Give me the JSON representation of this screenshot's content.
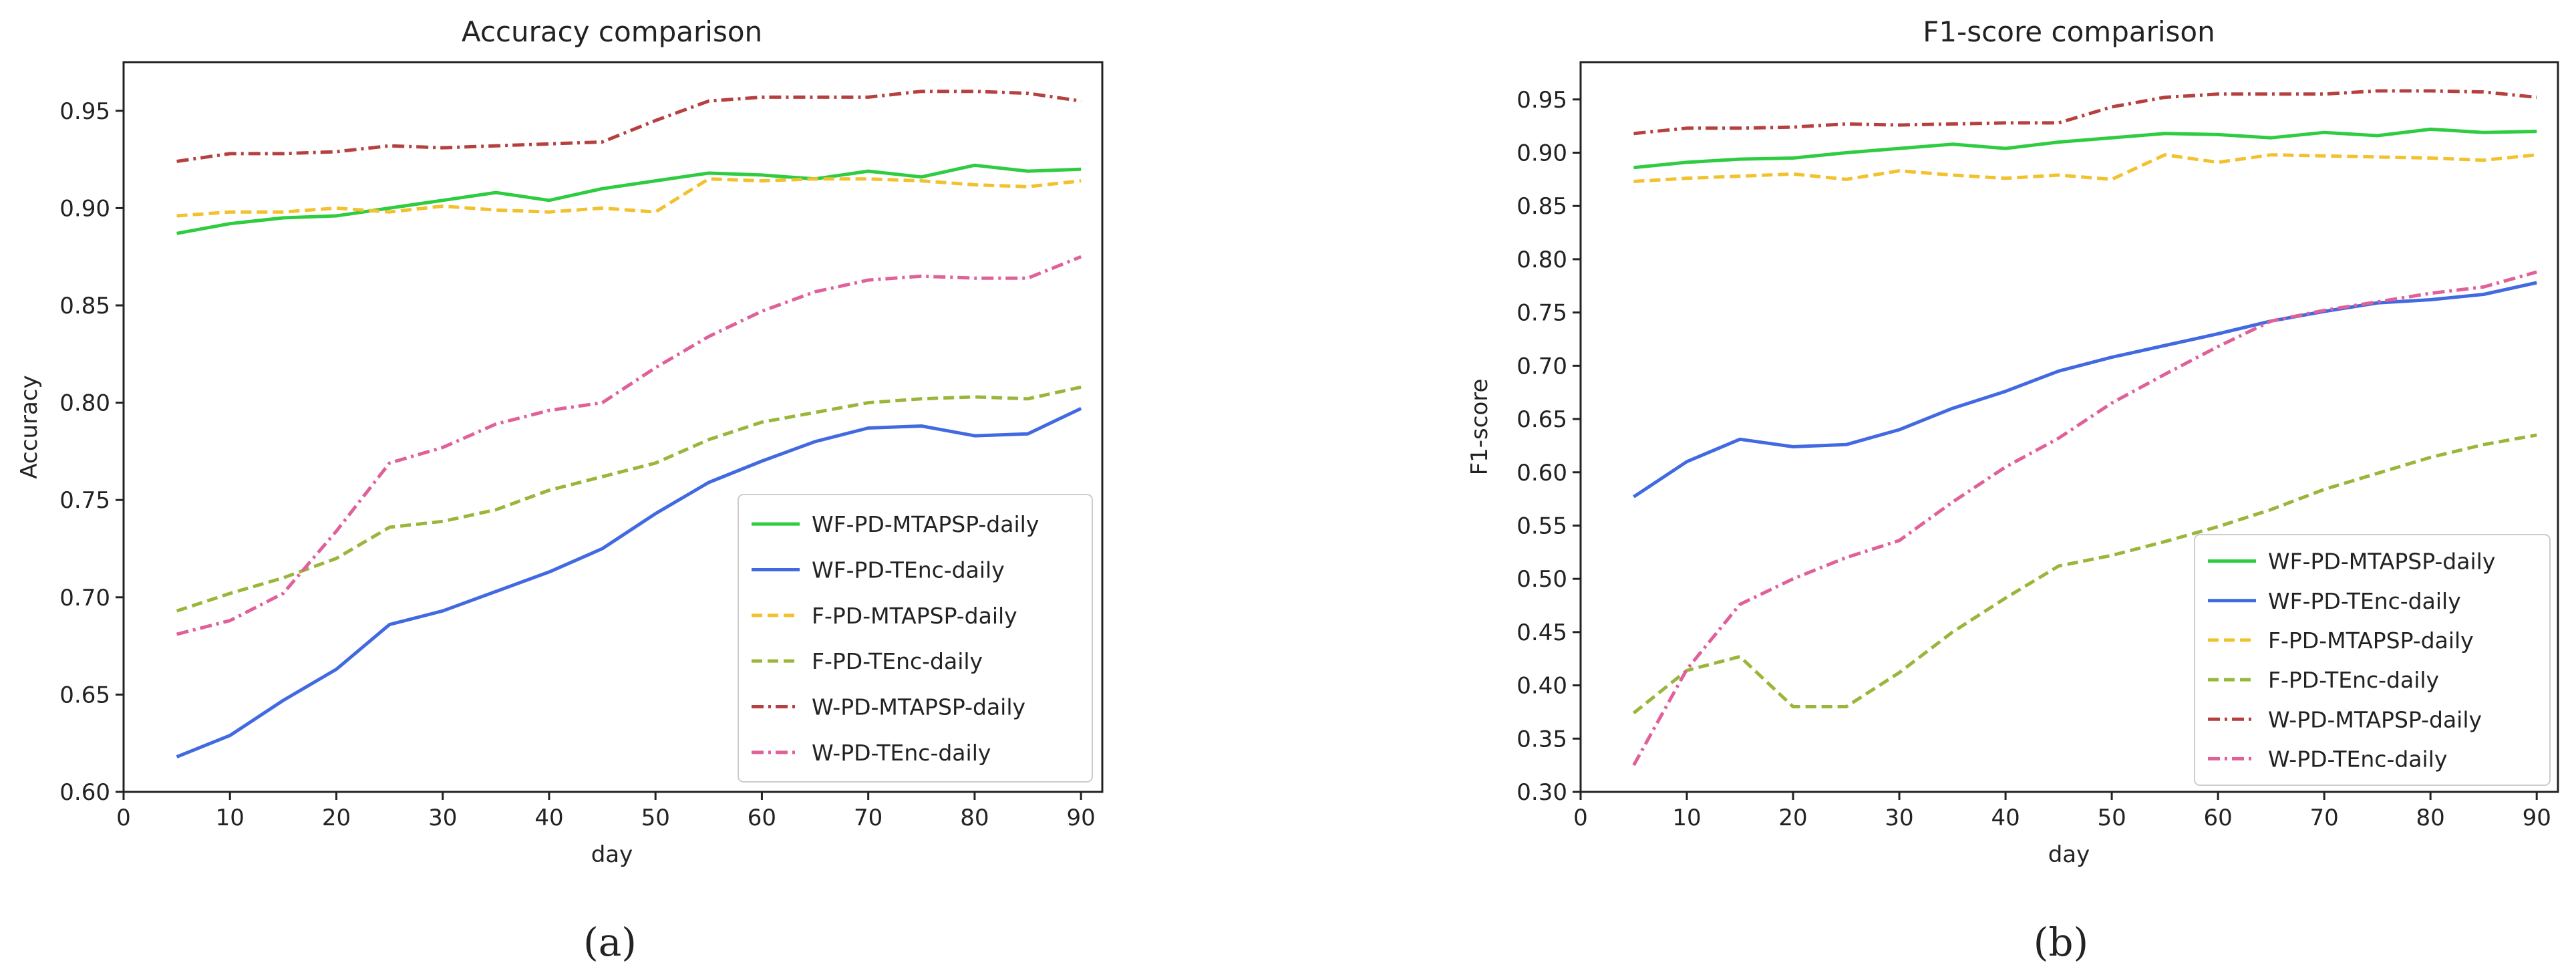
{
  "chart_data": [
    {
      "type": "line",
      "title": "Accuracy comparison",
      "xlabel": "day",
      "ylabel": "Accuracy",
      "caption": "(a)",
      "xlim": [
        0,
        92
      ],
      "ylim": [
        0.6,
        0.975
      ],
      "xticks": [
        0,
        10,
        20,
        30,
        40,
        50,
        60,
        70,
        80,
        90
      ],
      "yticks": [
        0.6,
        0.65,
        0.7,
        0.75,
        0.8,
        0.85,
        0.9,
        0.95
      ],
      "ytick_labels": [
        "0.60",
        "0.65",
        "0.70",
        "0.75",
        "0.80",
        "0.85",
        "0.90",
        "0.95"
      ],
      "legend_position": "lower-right",
      "x": [
        5,
        10,
        15,
        20,
        25,
        30,
        35,
        40,
        45,
        50,
        55,
        60,
        65,
        70,
        75,
        80,
        85,
        90
      ],
      "series": [
        {
          "name": "WF-PD-MTAPSP-daily",
          "color": "#2ecc40",
          "dash": "solid",
          "values": [
            0.887,
            0.892,
            0.895,
            0.896,
            0.9,
            0.904,
            0.908,
            0.904,
            0.91,
            0.914,
            0.918,
            0.917,
            0.915,
            0.919,
            0.916,
            0.922,
            0.919,
            0.92
          ]
        },
        {
          "name": "WF-PD-TEnc-daily",
          "color": "#4169e1",
          "dash": "solid",
          "values": [
            0.618,
            0.629,
            0.647,
            0.663,
            0.686,
            0.693,
            0.703,
            0.713,
            0.725,
            0.743,
            0.759,
            0.77,
            0.78,
            0.787,
            0.788,
            0.783,
            0.784,
            0.797
          ]
        },
        {
          "name": "F-PD-MTAPSP-daily",
          "color": "#f2c12e",
          "dash": "dashed",
          "values": [
            0.896,
            0.898,
            0.898,
            0.9,
            0.898,
            0.901,
            0.899,
            0.898,
            0.9,
            0.898,
            0.915,
            0.914,
            0.915,
            0.915,
            0.914,
            0.912,
            0.911,
            0.914
          ]
        },
        {
          "name": "F-PD-TEnc-daily",
          "color": "#9ab63a",
          "dash": "dashed",
          "values": [
            0.693,
            0.702,
            0.71,
            0.72,
            0.736,
            0.739,
            0.745,
            0.755,
            0.762,
            0.769,
            0.781,
            0.79,
            0.795,
            0.8,
            0.802,
            0.803,
            0.802,
            0.808
          ]
        },
        {
          "name": "W-PD-MTAPSP-daily",
          "color": "#b5403f",
          "dash": "dashdot",
          "values": [
            0.924,
            0.928,
            0.928,
            0.929,
            0.932,
            0.931,
            0.932,
            0.933,
            0.934,
            0.945,
            0.955,
            0.957,
            0.957,
            0.957,
            0.96,
            0.96,
            0.959,
            0.955
          ]
        },
        {
          "name": "W-PD-TEnc-daily",
          "color": "#e0609a",
          "dash": "dashdot",
          "values": [
            0.681,
            0.688,
            0.702,
            0.734,
            0.769,
            0.777,
            0.789,
            0.796,
            0.8,
            0.818,
            0.834,
            0.847,
            0.857,
            0.863,
            0.865,
            0.864,
            0.864,
            0.875
          ]
        }
      ]
    },
    {
      "type": "line",
      "title": "F1-score comparison",
      "xlabel": "day",
      "ylabel": "F1-score",
      "caption": "(b)",
      "xlim": [
        0,
        92
      ],
      "ylim": [
        0.3,
        0.985
      ],
      "xticks": [
        0,
        10,
        20,
        30,
        40,
        50,
        60,
        70,
        80,
        90
      ],
      "yticks": [
        0.3,
        0.35,
        0.4,
        0.45,
        0.5,
        0.55,
        0.6,
        0.65,
        0.7,
        0.75,
        0.8,
        0.85,
        0.9,
        0.95
      ],
      "ytick_labels": [
        "0.30",
        "0.35",
        "0.40",
        "0.45",
        "0.50",
        "0.55",
        "0.60",
        "0.65",
        "0.70",
        "0.75",
        "0.80",
        "0.85",
        "0.90",
        "0.95"
      ],
      "legend_position": "lower-right",
      "x": [
        5,
        10,
        15,
        20,
        25,
        30,
        35,
        40,
        45,
        50,
        55,
        60,
        65,
        70,
        75,
        80,
        85,
        90
      ],
      "series": [
        {
          "name": "WF-PD-MTAPSP-daily",
          "color": "#2ecc40",
          "dash": "solid",
          "values": [
            0.886,
            0.891,
            0.894,
            0.895,
            0.9,
            0.904,
            0.908,
            0.904,
            0.91,
            0.914,
            0.918,
            0.917,
            0.914,
            0.919,
            0.916,
            0.922,
            0.919,
            0.92
          ]
        },
        {
          "name": "WF-PD-TEnc-daily",
          "color": "#4169e1",
          "dash": "solid",
          "values": [
            0.577,
            0.61,
            0.631,
            0.624,
            0.626,
            0.64,
            0.66,
            0.676,
            0.695,
            0.708,
            0.719,
            0.73,
            0.742,
            0.751,
            0.759,
            0.762,
            0.767,
            0.778
          ]
        },
        {
          "name": "F-PD-MTAPSP-daily",
          "color": "#f2c12e",
          "dash": "dashed",
          "values": [
            0.873,
            0.876,
            0.878,
            0.88,
            0.875,
            0.883,
            0.879,
            0.876,
            0.879,
            0.875,
            0.898,
            0.891,
            0.898,
            0.897,
            0.896,
            0.895,
            0.893,
            0.898
          ]
        },
        {
          "name": "F-PD-TEnc-daily",
          "color": "#9ab63a",
          "dash": "dashed",
          "values": [
            0.374,
            0.414,
            0.427,
            0.38,
            0.38,
            0.412,
            0.45,
            0.482,
            0.512,
            0.522,
            0.535,
            0.549,
            0.565,
            0.584,
            0.599,
            0.614,
            0.626,
            0.635
          ]
        },
        {
          "name": "W-PD-MTAPSP-daily",
          "color": "#b5403f",
          "dash": "dashdot",
          "values": [
            0.918,
            0.923,
            0.923,
            0.924,
            0.927,
            0.926,
            0.927,
            0.928,
            0.928,
            0.943,
            0.952,
            0.955,
            0.955,
            0.955,
            0.958,
            0.958,
            0.957,
            0.952
          ]
        },
        {
          "name": "W-PD-TEnc-daily",
          "color": "#e0609a",
          "dash": "dashdot",
          "values": [
            0.325,
            0.415,
            0.476,
            0.5,
            0.52,
            0.536,
            0.572,
            0.605,
            0.632,
            0.665,
            0.692,
            0.718,
            0.742,
            0.752,
            0.76,
            0.768,
            0.774,
            0.788
          ]
        }
      ]
    }
  ]
}
